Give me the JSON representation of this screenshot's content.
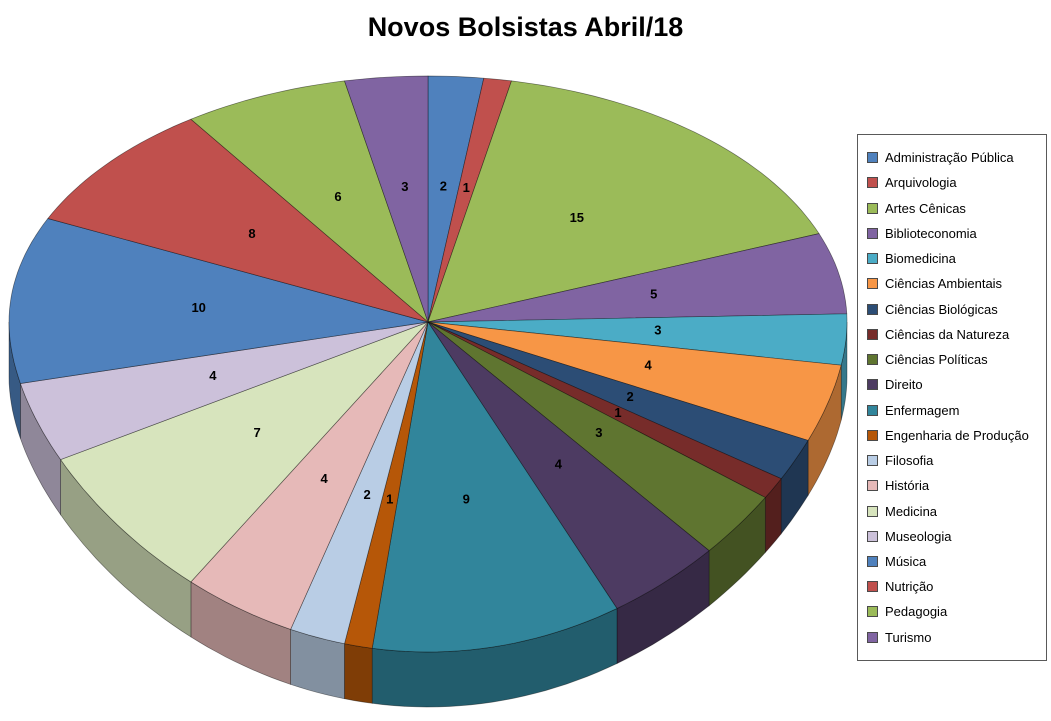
{
  "title": "Novos Bolsistas Abril/18",
  "chart_data": {
    "type": "pie",
    "style": "3d",
    "title": "Novos Bolsistas Abril/18",
    "categories": [
      "Administração Pública",
      "Arquivologia",
      "Artes Cênicas",
      "Biblioteconomia",
      "Biomedicina",
      "Ciências Ambientais",
      "Ciências Biológicas",
      "Ciências da Natureza",
      "Ciências Políticas",
      "Direito",
      "Enfermagem",
      "Engenharia de Produção",
      "Filosofia",
      "História",
      "Medicina",
      "Museologia",
      "Música",
      "Nutrição",
      "Pedagogia",
      "Turismo"
    ],
    "values": [
      2,
      1,
      15,
      5,
      3,
      4,
      2,
      1,
      3,
      4,
      9,
      1,
      2,
      4,
      7,
      4,
      10,
      8,
      6,
      3
    ],
    "total": 94,
    "colors": [
      "#4F81BD",
      "#C0504D",
      "#9BBB59",
      "#8064A2",
      "#4BACC6",
      "#F79646",
      "#2C4D75",
      "#772C2A",
      "#5F7530",
      "#4D3B62",
      "#31859B",
      "#B65708",
      "#B9CDE5",
      "#E6B9B8",
      "#D7E4BD",
      "#CCC1DA",
      "#4F81BD",
      "#C0504D",
      "#9BBB59",
      "#8064A2"
    ],
    "data_labels": "values",
    "legend_position": "right",
    "start_angle_deg": -90,
    "direction": "clockwise"
  }
}
